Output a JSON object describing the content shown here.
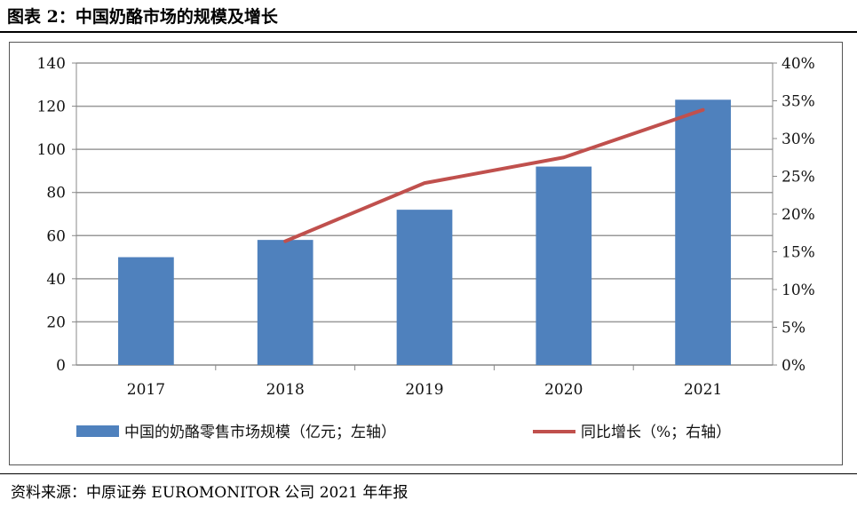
{
  "title": "图表 2：中国奶酪市场的规模及增长",
  "source": "资料来源：中原证券  EUROMONITOR  公司 2021 年年报",
  "chart_data": {
    "type": "bar+line",
    "categories": [
      "2017",
      "2018",
      "2019",
      "2020",
      "2021"
    ],
    "series": [
      {
        "name": "中国的奶酪零售市场规模（亿元；左轴）",
        "type": "bar",
        "axis": "left",
        "color": "#4F81BD",
        "values": [
          50,
          58,
          72,
          92,
          123
        ]
      },
      {
        "name": "同比增长（%；右轴）",
        "type": "line",
        "axis": "right",
        "color": "#C0504D",
        "values": [
          null,
          16.4,
          24.1,
          27.5,
          33.8
        ]
      }
    ],
    "left_axis": {
      "range": [
        0,
        140
      ],
      "ticks": [
        "0",
        "20",
        "40",
        "60",
        "80",
        "100",
        "120",
        "140"
      ]
    },
    "right_axis": {
      "range": [
        0,
        40
      ],
      "ticks": [
        "0%",
        "5%",
        "10%",
        "15%",
        "20%",
        "25%",
        "30%",
        "35%",
        "40%"
      ]
    },
    "grid": true,
    "legend": "bottom"
  }
}
